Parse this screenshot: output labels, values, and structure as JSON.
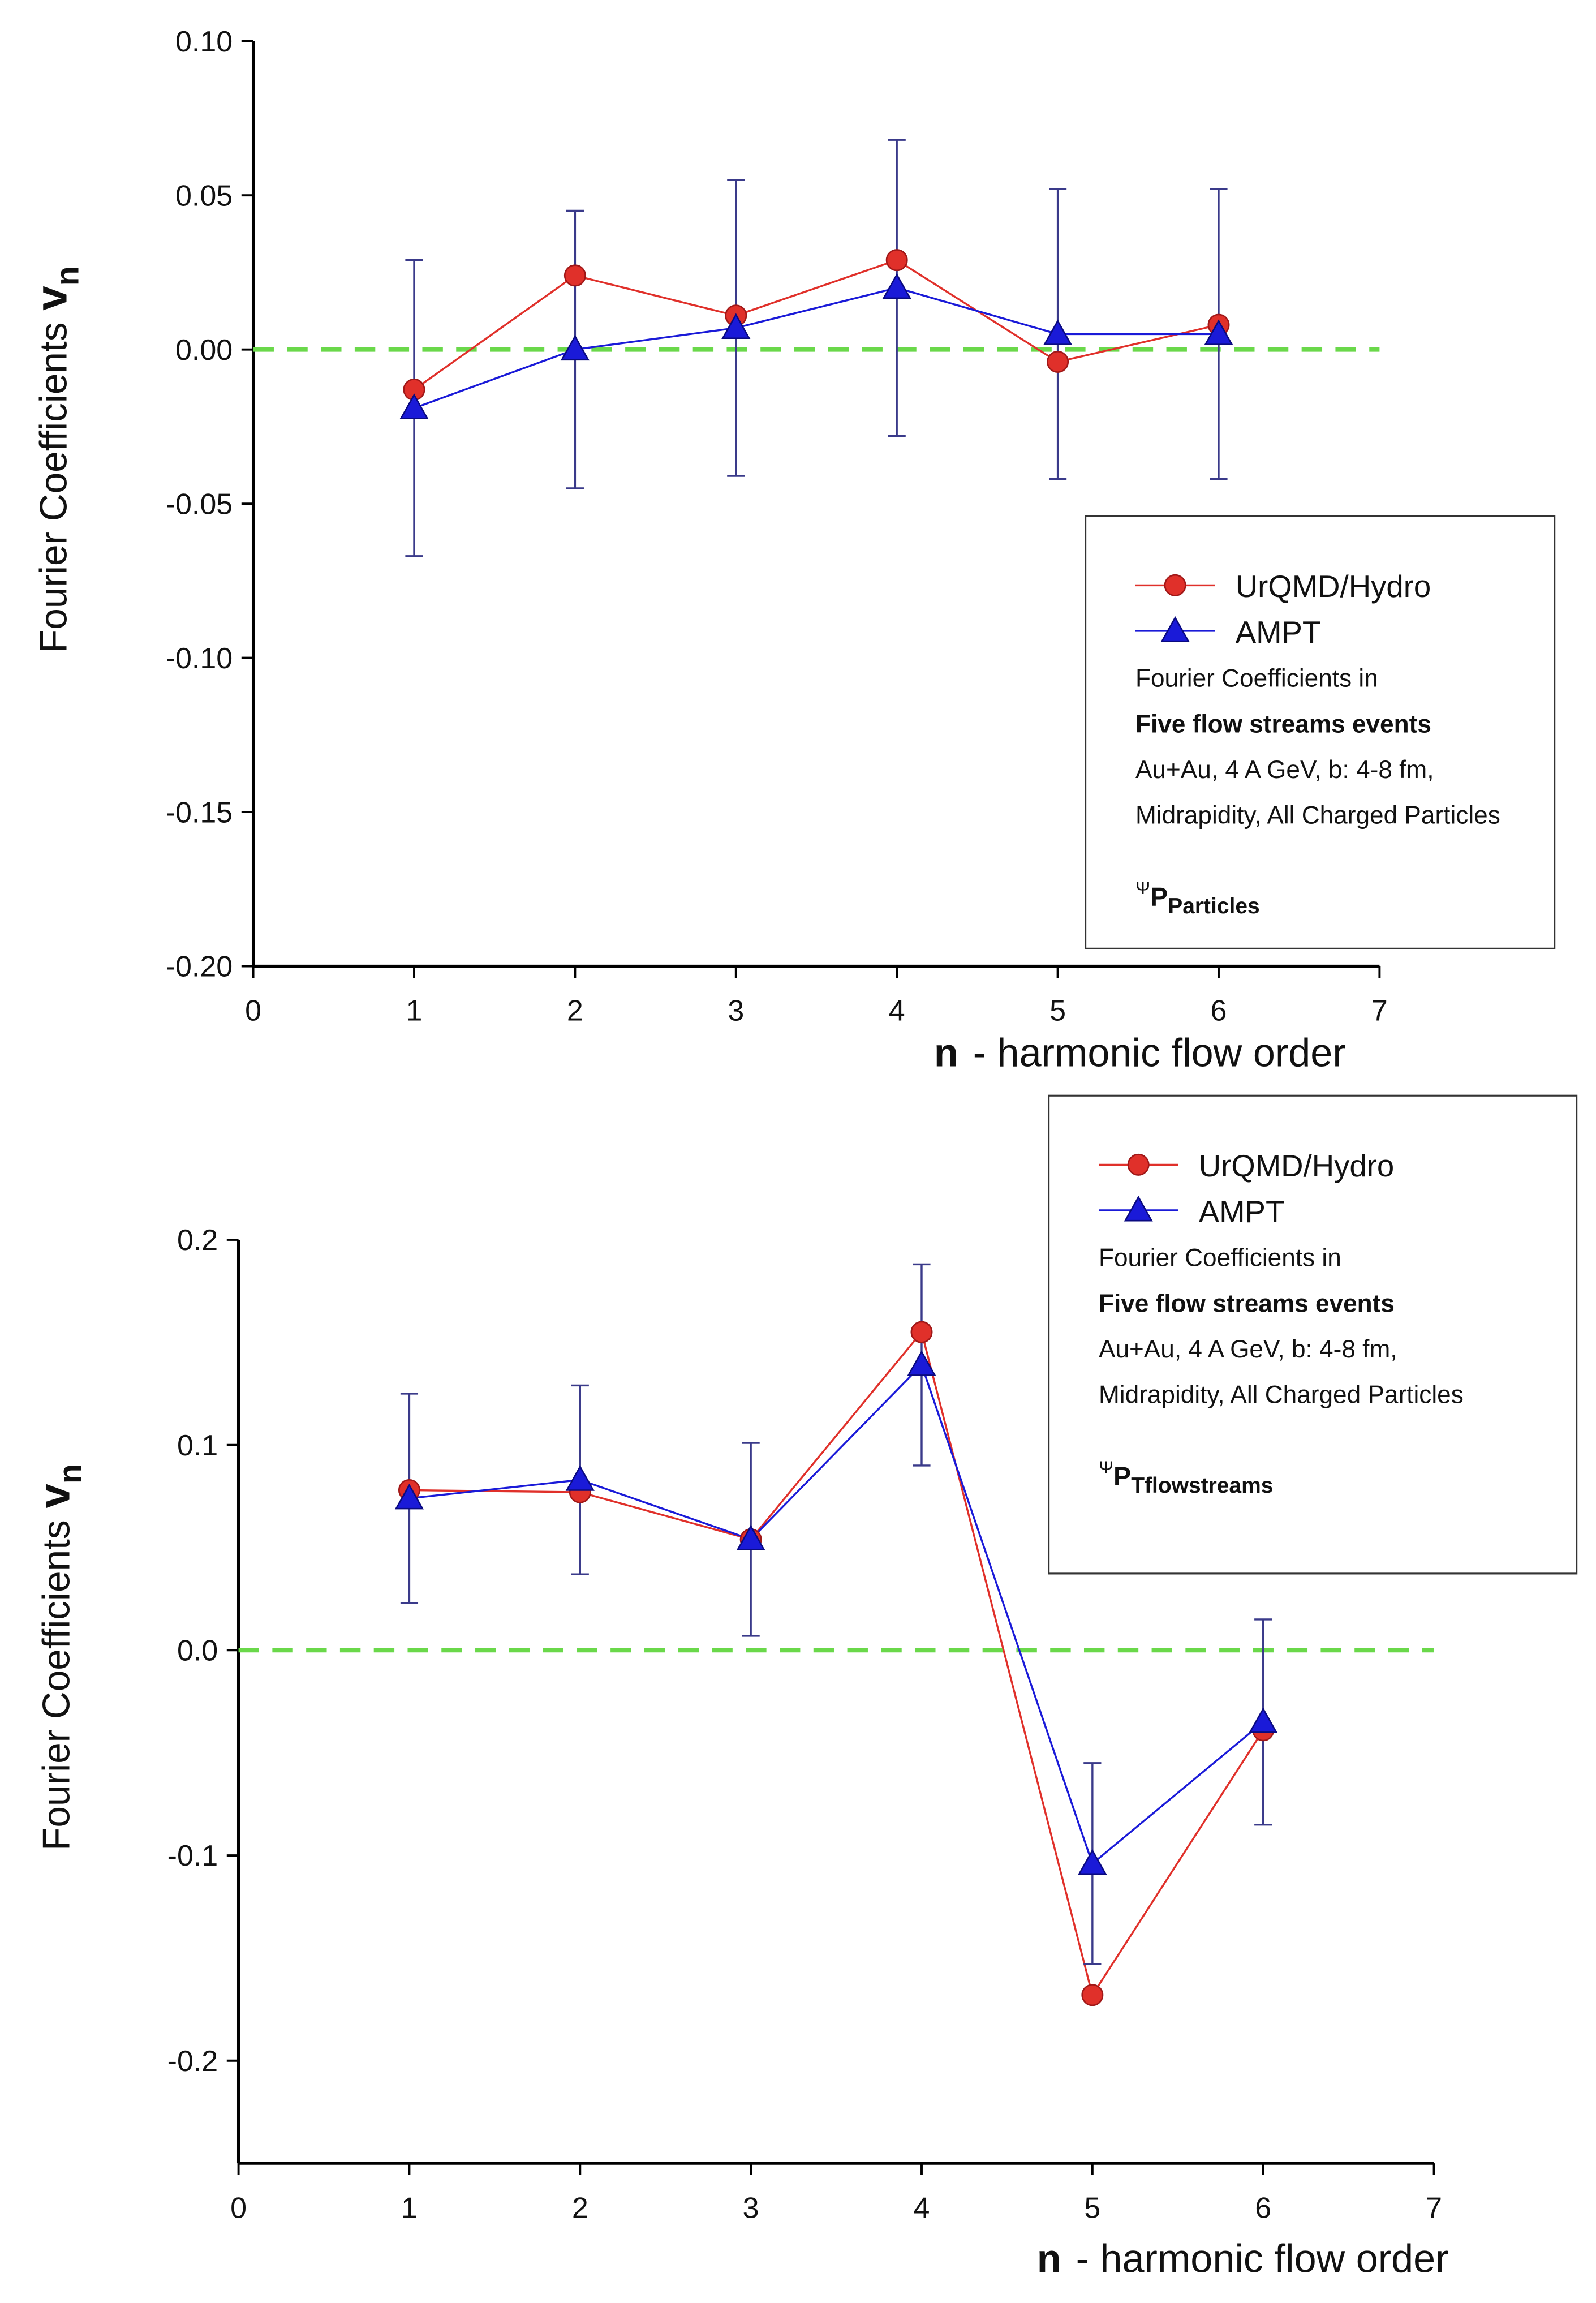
{
  "chart_data": [
    {
      "type": "line",
      "ylabel": {
        "text": "Fourier Coefficients",
        "var": "v",
        "sub": "n"
      },
      "xlabel": {
        "var": "n",
        "text": "- harmonic flow order"
      },
      "x": [
        1,
        2,
        3,
        4,
        5,
        6
      ],
      "xlim": [
        0,
        7
      ],
      "xticks": [
        0,
        1,
        2,
        3,
        4,
        5,
        6,
        7
      ],
      "ylim": [
        -0.2,
        0.1
      ],
      "yticks": [
        {
          "value": 0.1,
          "label": "0.10"
        },
        0.05,
        {
          "value": 0,
          "label": "0.00"
        },
        -0.05,
        {
          "value": -0.1,
          "label": "-0.10"
        },
        -0.15,
        {
          "value": -0.2,
          "label": "-0.20"
        }
      ],
      "reference_line": {
        "value": 0,
        "color": "#6ad84a"
      },
      "legend": "lower right",
      "series": [
        {
          "name": "UrQMD/Hydro",
          "color": "#e0302a",
          "marker": "circle",
          "values": [
            -0.013,
            0.024,
            0.011,
            0.029,
            -0.004,
            0.008
          ]
        },
        {
          "name": "AMPT",
          "color": "#1a1ad8",
          "marker": "triangle",
          "values": [
            -0.019,
            0.0,
            0.007,
            0.02,
            0.005,
            0.005
          ],
          "errors": [
            0.048,
            0.045,
            0.048,
            0.048,
            0.047,
            0.047
          ]
        }
      ],
      "notes": [
        "Fourier Coefficients in",
        "Five flow streams events",
        "Au+Au, 4 A GeV, b: 4-8 fm,",
        "Midrapidity, All Charged Particles"
      ],
      "annotation": {
        "symbol": "Ψ",
        "main": "P",
        "sub": "Particles"
      }
    },
    {
      "type": "line",
      "ylabel": {
        "text": "Fourier Coefficients",
        "var": "v",
        "sub": "n"
      },
      "xlabel": {
        "var": "n",
        "text": "- harmonic flow order"
      },
      "x": [
        1,
        2,
        3,
        4,
        5,
        6
      ],
      "xlim": [
        0,
        7
      ],
      "xticks": [
        0,
        1,
        2,
        3,
        4,
        5,
        6,
        7
      ],
      "ylim": [
        -0.25,
        0.2
      ],
      "yticks": [
        0.2,
        0.1,
        {
          "value": 0,
          "label": "0.0"
        },
        -0.1,
        -0.2
      ],
      "reference_line": {
        "value": 0,
        "color": "#6ad84a"
      },
      "legend": "upper right",
      "series": [
        {
          "name": "UrQMD/Hydro",
          "color": "#e0302a",
          "marker": "circle",
          "values": [
            0.078,
            0.077,
            0.054,
            0.155,
            -0.168,
            -0.039
          ]
        },
        {
          "name": "AMPT",
          "color": "#1a1ad8",
          "marker": "triangle",
          "values": [
            0.074,
            0.083,
            0.054,
            0.139,
            -0.104,
            -0.035
          ],
          "errors": [
            0.051,
            0.046,
            0.047,
            0.049,
            0.049,
            0.05
          ]
        }
      ],
      "notes": [
        "Fourier Coefficients in",
        "Five flow streams events",
        "Au+Au, 4 A GeV, b: 4-8 fm,",
        "Midrapidity, All Charged Particles"
      ],
      "annotation": {
        "symbol": "Ψ",
        "main": "P",
        "sub": "Tflowstreams"
      }
    }
  ]
}
